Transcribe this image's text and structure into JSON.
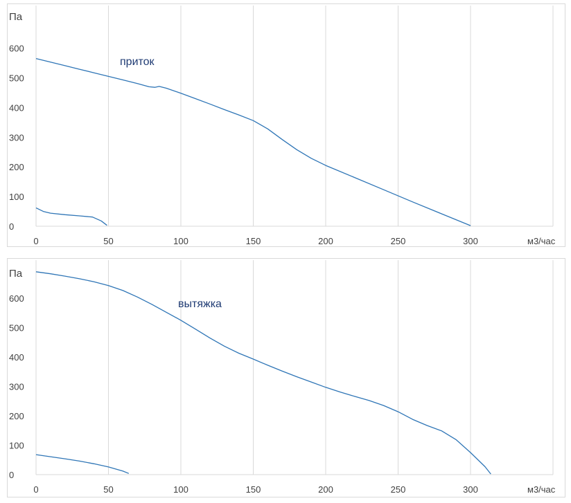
{
  "chart_data": [
    {
      "type": "line",
      "ylabel": "Па",
      "xlabel": "м3/час",
      "xlim": [
        0,
        350
      ],
      "ylim": [
        0,
        650
      ],
      "xticks": [
        0,
        50,
        100,
        150,
        200,
        250,
        300
      ],
      "yticks": [
        0,
        100,
        200,
        300,
        400,
        500,
        600
      ],
      "grid": true,
      "line_color": "#2e75b6",
      "annotation": "приток",
      "series": [
        {
          "x": [
            0,
            10,
            20,
            30,
            40,
            50,
            60,
            70,
            78,
            82,
            85,
            90,
            100,
            110,
            120,
            130,
            140,
            150,
            160,
            170,
            180,
            190,
            200,
            220,
            240,
            260,
            280,
            300
          ],
          "y": [
            565,
            553,
            541,
            529,
            517,
            505,
            493,
            481,
            470,
            468,
            471,
            465,
            448,
            430,
            412,
            393,
            375,
            356,
            328,
            292,
            258,
            229,
            205,
            164,
            123,
            82,
            42,
            2
          ]
        },
        {
          "x": [
            0,
            5,
            10,
            20,
            30,
            39,
            45,
            49
          ],
          "y": [
            62,
            50,
            44,
            39,
            35,
            31,
            18,
            3
          ]
        }
      ]
    },
    {
      "type": "line",
      "ylabel": "Па",
      "xlabel": "м3/час",
      "xlim": [
        0,
        350
      ],
      "ylim": [
        0,
        700
      ],
      "xticks": [
        0,
        50,
        100,
        150,
        200,
        250,
        300
      ],
      "yticks": [
        0,
        100,
        200,
        300,
        400,
        500,
        600
      ],
      "grid": true,
      "line_color": "#2e75b6",
      "annotation": "вытяжка",
      "series": [
        {
          "x": [
            0,
            10,
            20,
            30,
            40,
            50,
            60,
            70,
            80,
            90,
            100,
            110,
            120,
            130,
            140,
            150,
            160,
            170,
            180,
            190,
            200,
            210,
            220,
            230,
            240,
            250,
            260,
            270,
            280,
            290,
            300,
            310,
            314
          ],
          "y": [
            690,
            683,
            675,
            666,
            656,
            643,
            626,
            604,
            579,
            552,
            525,
            495,
            465,
            437,
            413,
            393,
            372,
            352,
            333,
            315,
            297,
            281,
            266,
            252,
            235,
            214,
            188,
            167,
            149,
            119,
            75,
            27,
            2
          ]
        },
        {
          "x": [
            0,
            10,
            20,
            30,
            40,
            50,
            60,
            64
          ],
          "y": [
            68,
            61,
            54,
            46,
            37,
            26,
            12,
            4
          ]
        }
      ]
    }
  ]
}
